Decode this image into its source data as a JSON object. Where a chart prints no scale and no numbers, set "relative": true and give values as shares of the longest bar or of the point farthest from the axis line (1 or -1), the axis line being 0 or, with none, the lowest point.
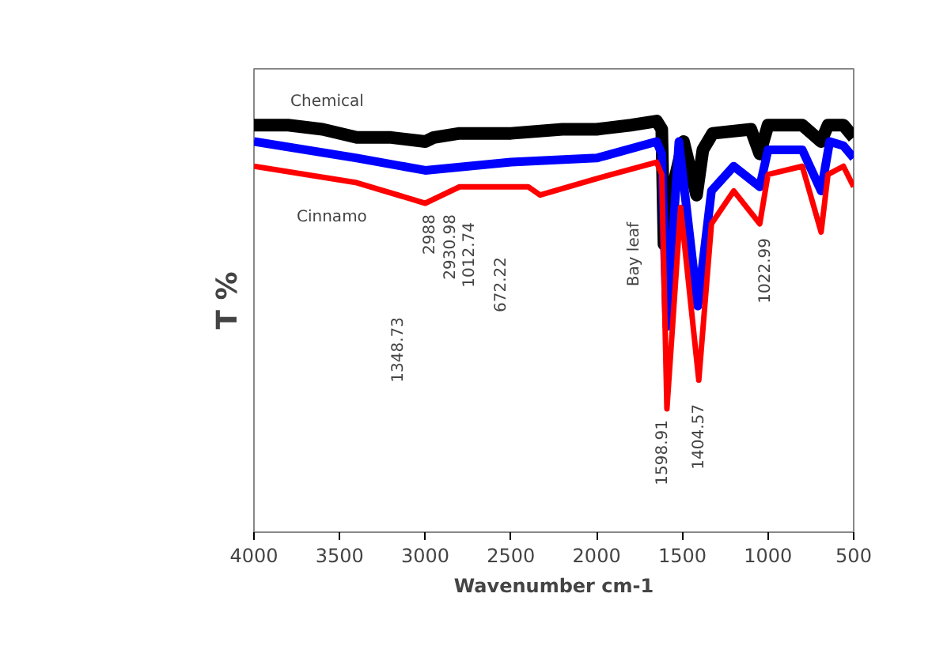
{
  "chart_data": {
    "type": "line",
    "relative": true,
    "xlabel": "Wavenumber cm-1",
    "ylabel": "T %",
    "xlim": [
      4000,
      500
    ],
    "xticks": [
      4000,
      3500,
      3000,
      2500,
      2000,
      1500,
      1000,
      500
    ],
    "grid": false,
    "marker": "none",
    "line_style": "solid",
    "series": [
      {
        "name": "Chemical",
        "color": "#000000",
        "x": [
          4000,
          3800,
          3600,
          3400,
          3200,
          3000,
          2950,
          2800,
          2500,
          2200,
          2000,
          1800,
          1650,
          1620,
          1607,
          1560,
          1493,
          1417,
          1380,
          1323,
          1100,
          1048,
          1000,
          800,
          690,
          650,
          560,
          500
        ],
        "values": [
          0.99,
          0.99,
          0.98,
          0.96,
          0.96,
          0.95,
          0.96,
          0.97,
          0.97,
          0.98,
          0.98,
          0.99,
          1.0,
          0.98,
          0.7,
          0.83,
          0.95,
          0.82,
          0.93,
          0.97,
          0.98,
          0.92,
          0.99,
          0.99,
          0.95,
          0.99,
          0.99,
          0.96
        ]
      },
      {
        "name": "Bay leaf",
        "color": "#0000ff",
        "x": [
          4000,
          3400,
          3000,
          2500,
          2000,
          1650,
          1620,
          1590,
          1520,
          1410,
          1330,
          1200,
          1048,
          1000,
          800,
          690,
          640,
          560,
          500
        ],
        "values": [
          0.95,
          0.91,
          0.88,
          0.9,
          0.91,
          0.95,
          0.92,
          0.5,
          0.95,
          0.55,
          0.83,
          0.89,
          0.84,
          0.93,
          0.93,
          0.83,
          0.95,
          0.94,
          0.91
        ]
      },
      {
        "name": "Cinnamo",
        "color": "#ff0000",
        "x": [
          4000,
          3400,
          3000,
          2800,
          2400,
          2330,
          2000,
          1650,
          1620,
          1590,
          1510,
          1404,
          1330,
          1200,
          1048,
          1000,
          800,
          690,
          650,
          560,
          500
        ],
        "values": [
          0.89,
          0.85,
          0.8,
          0.84,
          0.84,
          0.82,
          0.86,
          0.9,
          0.87,
          0.3,
          0.79,
          0.37,
          0.75,
          0.83,
          0.75,
          0.87,
          0.89,
          0.73,
          0.87,
          0.89,
          0.84
        ]
      }
    ],
    "annotations": [
      "2988",
      "2930.98",
      "1012.74",
      "672.22",
      "1348.73",
      "1022.99",
      "1598.91",
      "1404.57"
    ]
  }
}
